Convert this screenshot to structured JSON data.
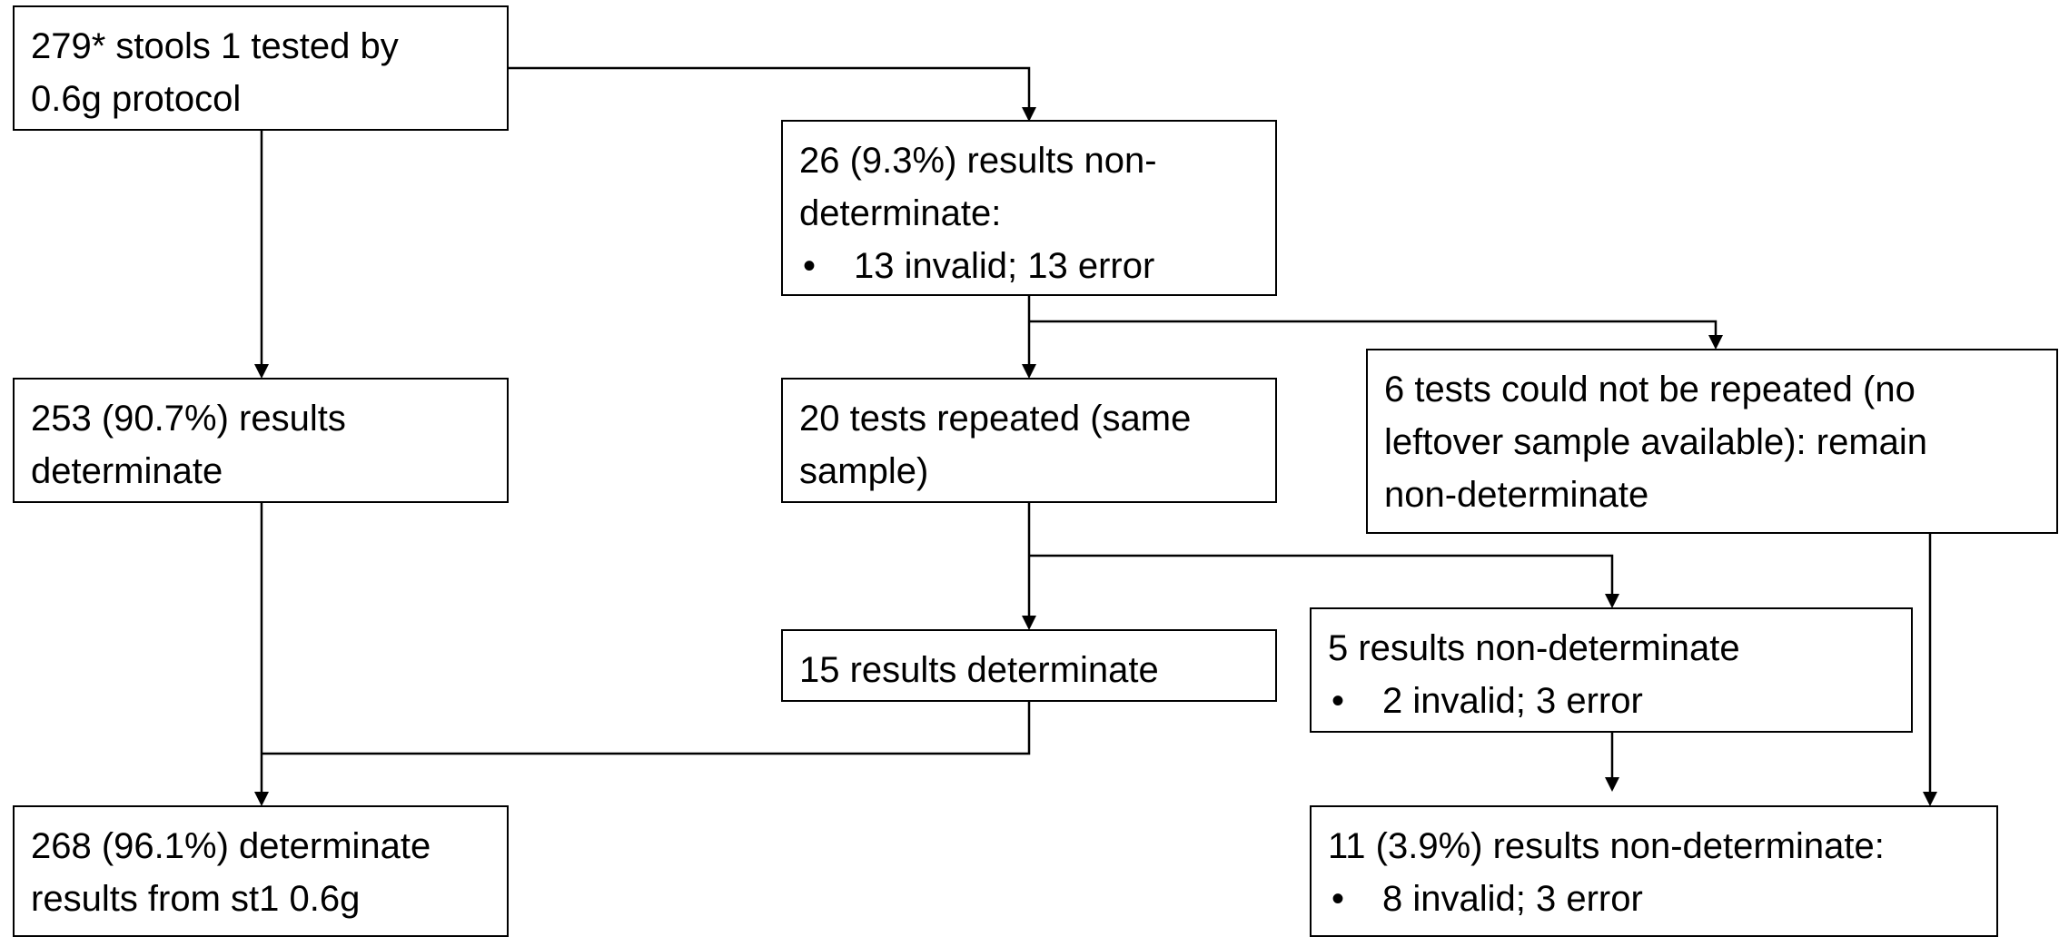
{
  "boxes": {
    "start": {
      "lines": [
        "279* stools 1 tested by",
        "0.6g protocol"
      ]
    },
    "nondeterminate_initial": {
      "lines": [
        "26 (9.3%) results non-",
        "determinate:"
      ],
      "bullets": [
        "13 invalid; 13 error"
      ]
    },
    "determinate_initial": {
      "lines": [
        "253 (90.7%) results",
        "determinate"
      ]
    },
    "repeated": {
      "lines": [
        "20 tests repeated (same",
        "sample)"
      ]
    },
    "not_repeated": {
      "lines": [
        "6 tests could not be repeated (no",
        "leftover sample available): remain",
        "non-determinate"
      ]
    },
    "repeat_determinate": {
      "lines": [
        "15 results determinate"
      ]
    },
    "repeat_nondeterminate": {
      "lines": [
        "5 results non-determinate"
      ],
      "bullets": [
        "2 invalid; 3 error"
      ]
    },
    "final_determinate": {
      "lines": [
        "268 (96.1%) determinate",
        "results from st1 0.6g"
      ]
    },
    "final_nondeterminate": {
      "lines": [
        "11 (3.9%) results non-determinate:"
      ],
      "bullets": [
        "8 invalid; 3 error"
      ]
    }
  },
  "bullet_glyph": "•"
}
